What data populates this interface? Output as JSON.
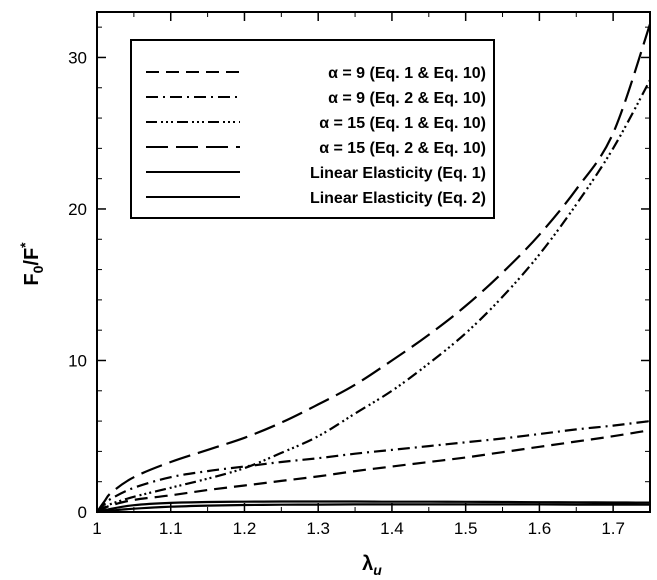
{
  "chart_data": {
    "type": "line",
    "xlabel": "λ",
    "xlabel_sub": "u",
    "ylabel": "F",
    "ylabel_sub": "0",
    "ylabel_tail": "/F",
    "ylabel_sup": "*",
    "xlim": [
      1.0,
      1.75
    ],
    "ylim": [
      0,
      33
    ],
    "xticks": [
      1,
      1.1,
      1.2,
      1.3,
      1.4,
      1.5,
      1.6,
      1.7
    ],
    "xtick_labels": [
      "1",
      "1.1",
      "1.2",
      "1.3",
      "1.4",
      "1.5",
      "1.6",
      "1.7"
    ],
    "yticks": [
      0,
      10,
      20,
      30
    ],
    "ytick_labels": [
      "0",
      "10",
      "20",
      "30"
    ],
    "grid": false,
    "legend_position": "top-left",
    "x": [
      1.0,
      1.01,
      1.02,
      1.05,
      1.1,
      1.15,
      1.2,
      1.25,
      1.3,
      1.35,
      1.4,
      1.45,
      1.5,
      1.55,
      1.6,
      1.65,
      1.7,
      1.75
    ],
    "series": [
      {
        "name": "α = 9 (Eq. 1 & Eq. 10)",
        "dash": "13,7",
        "values": [
          0.0,
          0.25,
          0.45,
          0.8,
          1.1,
          1.45,
          1.75,
          2.05,
          2.35,
          2.7,
          3.0,
          3.3,
          3.6,
          3.95,
          4.3,
          4.65,
          5.0,
          5.4
        ]
      },
      {
        "name": "α = 9 (Eq. 2 & Eq. 10)",
        "dash": "12,5,2,5",
        "values": [
          0.0,
          0.5,
          0.9,
          1.6,
          2.3,
          2.7,
          3.0,
          3.3,
          3.55,
          3.85,
          4.1,
          4.35,
          4.6,
          4.85,
          5.15,
          5.45,
          5.7,
          6.0
        ]
      },
      {
        "name": "α = 15 (Eq. 1 & Eq. 10)",
        "dash": "11,4,2,3,2,3,2,4",
        "values": [
          0.0,
          0.3,
          0.55,
          1.0,
          1.6,
          2.2,
          2.9,
          3.9,
          5.0,
          6.5,
          8.0,
          9.8,
          11.8,
          14.2,
          17.0,
          20.3,
          24.0,
          28.5
        ]
      },
      {
        "name": "α = 15 (Eq. 2 & Eq. 10)",
        "dash": "22,8",
        "values": [
          0.0,
          0.7,
          1.3,
          2.3,
          3.3,
          4.1,
          4.9,
          5.9,
          7.1,
          8.4,
          10.0,
          11.7,
          13.6,
          15.8,
          18.3,
          21.3,
          25.0,
          32.2
        ]
      },
      {
        "name": "Linear Elasticity (Eq. 1)",
        "dash": "",
        "values": [
          0.0,
          0.05,
          0.1,
          0.22,
          0.35,
          0.42,
          0.46,
          0.48,
          0.49,
          0.5,
          0.5,
          0.5,
          0.5,
          0.5,
          0.5,
          0.49,
          0.49,
          0.48
        ]
      },
      {
        "name": "Linear Elasticity (Eq. 2)",
        "dash": "",
        "values": [
          0.0,
          0.1,
          0.22,
          0.45,
          0.6,
          0.66,
          0.68,
          0.69,
          0.69,
          0.69,
          0.68,
          0.68,
          0.67,
          0.66,
          0.65,
          0.64,
          0.63,
          0.62
        ]
      }
    ]
  }
}
